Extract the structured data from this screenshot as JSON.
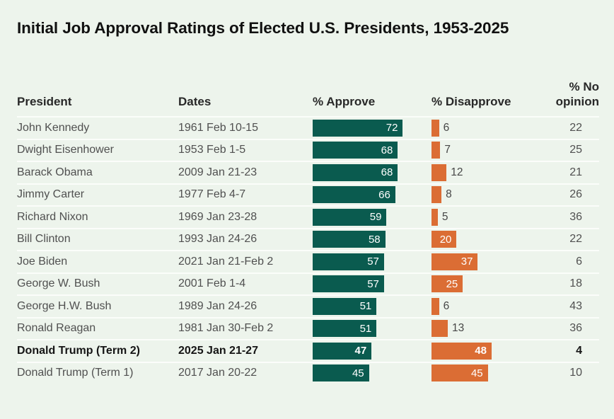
{
  "title": "Initial Job Approval Ratings of Elected U.S. Presidents, 1953-2025",
  "columns": {
    "president": "President",
    "dates": "Dates",
    "approve": "% Approve",
    "disapprove": "% Disapprove",
    "no_opinion": "% No opinion"
  },
  "colors": {
    "background": "#edf4ec",
    "approve_bar": "#0a5b4f",
    "disapprove_bar": "#db6d34",
    "bar_label": "#ffffff",
    "row_divider": "#fbfdfa"
  },
  "chart_data": {
    "type": "bar",
    "orientation": "horizontal",
    "title": "Initial Job Approval Ratings of Elected U.S. Presidents, 1953-2025",
    "unit": "%",
    "xlim": [
      0,
      100
    ],
    "legend_position": "column-headers",
    "grid": false,
    "categories": [
      "John Kennedy",
      "Dwight Eisenhower",
      "Barack Obama",
      "Jimmy Carter",
      "Richard Nixon",
      "Bill Clinton",
      "Joe Biden",
      "George W. Bush",
      "George H.W. Bush",
      "Ronald Reagan",
      "Donald Trump (Term 2)",
      "Donald Trump (Term 1)"
    ],
    "dates": [
      "1961 Feb 10-15",
      "1953 Feb 1-5",
      "2009 Jan 21-23",
      "1977 Feb 4-7",
      "1969 Jan 23-28",
      "1993 Jan 24-26",
      "2021 Jan 21-Feb 2",
      "2001 Feb 1-4",
      "1989 Jan 24-26",
      "1981 Jan 30-Feb 2",
      "2025 Jan 21-27",
      "2017 Jan 20-22"
    ],
    "emphasized_index": 10,
    "series": [
      {
        "name": "% Approve",
        "color": "#0a5b4f",
        "values": [
          72,
          68,
          68,
          66,
          59,
          58,
          57,
          57,
          51,
          51,
          47,
          45
        ]
      },
      {
        "name": "% Disapprove",
        "color": "#db6d34",
        "values": [
          6,
          7,
          12,
          8,
          5,
          20,
          37,
          25,
          6,
          13,
          48,
          45
        ]
      },
      {
        "name": "% No opinion",
        "color": null,
        "values": [
          22,
          25,
          21,
          26,
          36,
          22,
          6,
          18,
          43,
          36,
          4,
          10
        ]
      }
    ]
  }
}
